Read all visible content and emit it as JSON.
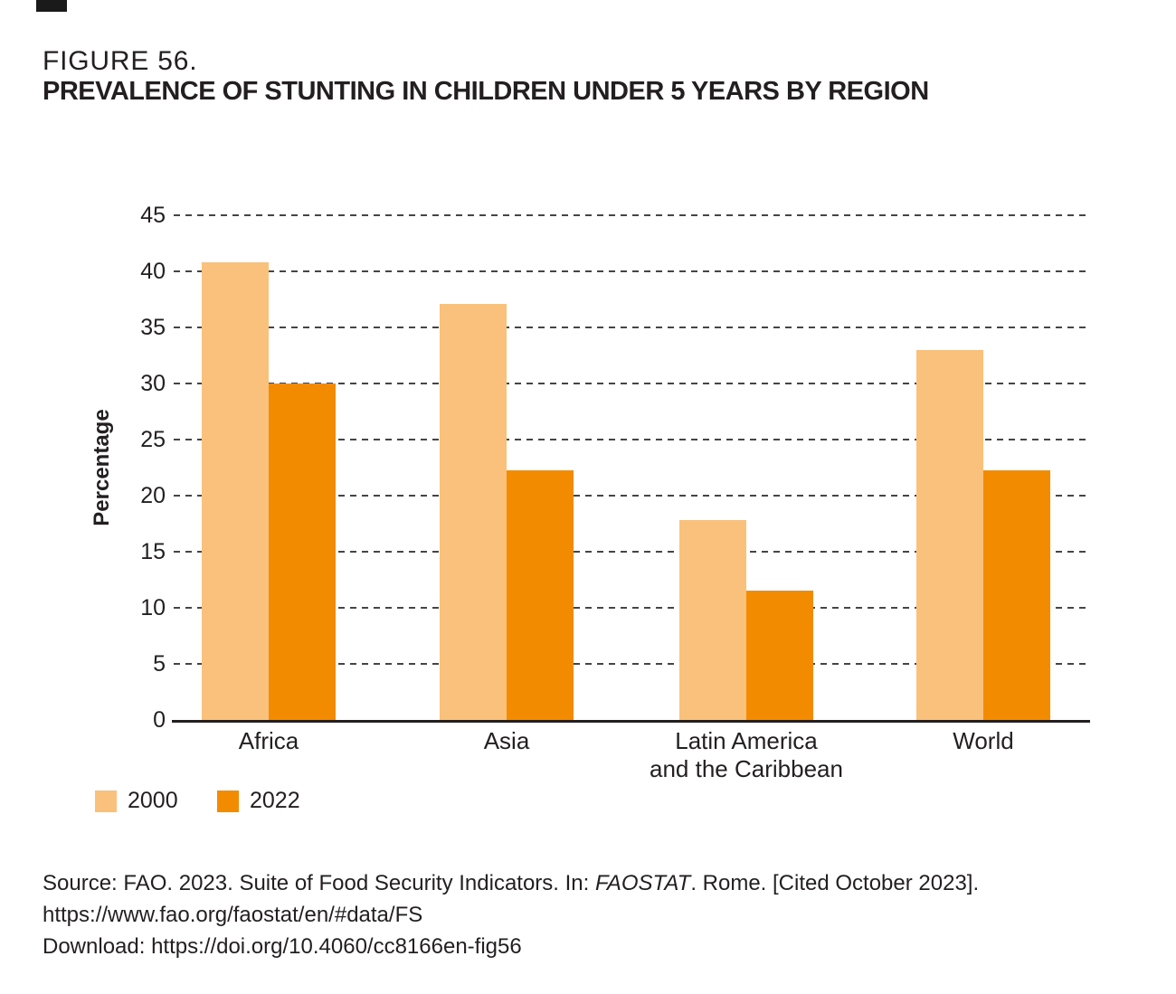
{
  "header": {
    "figure_label": "FIGURE 56.",
    "title": "PREVALENCE OF STUNTING IN CHILDREN UNDER 5 YEARS BY REGION"
  },
  "chart_data": {
    "type": "bar",
    "categories": [
      "Africa",
      "Asia",
      "Latin America and the Caribbean",
      "World"
    ],
    "category_labels": [
      "Africa",
      "Asia",
      "Latin America\nand the Caribbean",
      "World"
    ],
    "series": [
      {
        "name": "2000",
        "color": "#F9C17B",
        "values": [
          40.8,
          37.1,
          17.8,
          33.0
        ]
      },
      {
        "name": "2022",
        "color": "#F38B00",
        "values": [
          30.0,
          22.3,
          11.5,
          22.3
        ]
      }
    ],
    "ylabel": "Percentage",
    "ylim": [
      0,
      45
    ],
    "yticks": [
      0,
      5,
      10,
      15,
      20,
      25,
      30,
      35,
      40,
      45
    ],
    "grid": "horizontal-dashed",
    "legend_position": "bottom-left",
    "legend": [
      "2000",
      "2022"
    ]
  },
  "source": {
    "line1_pre": "Source: FAO. 2023. Suite of Food Security Indicators. In: ",
    "line1_italic": "FAOSTAT",
    "line1_post": ". Rome. [Cited October 2023].",
    "line2": "https://www.fao.org/faostat/en/#data/FS",
    "line3": "Download: https://doi.org/10.4060/cc8166en-fig56"
  },
  "colors": {
    "text": "#231F20",
    "axis": "#231F20",
    "gridline": "#454545",
    "bar_2000": "#F9C17B",
    "bar_2022": "#F38B00"
  }
}
